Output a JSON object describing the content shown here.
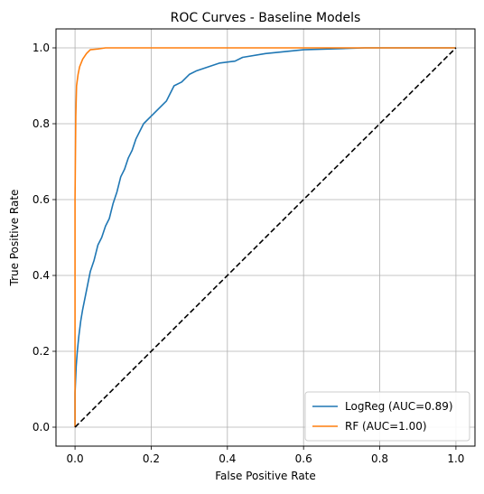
{
  "chart_data": {
    "type": "line",
    "title": "ROC Curves - Baseline Models",
    "xlabel": "False Positive Rate",
    "ylabel": "True Positive Rate",
    "xlim": [
      -0.05,
      1.05
    ],
    "ylim": [
      -0.05,
      1.05
    ],
    "xticks": [
      "0.0",
      "0.2",
      "0.4",
      "0.6",
      "0.8",
      "1.0"
    ],
    "yticks": [
      "0.0",
      "0.2",
      "0.4",
      "0.6",
      "0.8",
      "1.0"
    ],
    "grid": true,
    "legend_position": "lower-right",
    "series": [
      {
        "name": "LogReg (AUC=0.89)",
        "color": "#1f77b4",
        "style": "solid",
        "points": [
          [
            0.0,
            0.0
          ],
          [
            0.0,
            0.09
          ],
          [
            0.003,
            0.16
          ],
          [
            0.006,
            0.2
          ],
          [
            0.01,
            0.24
          ],
          [
            0.015,
            0.28
          ],
          [
            0.02,
            0.31
          ],
          [
            0.03,
            0.36
          ],
          [
            0.04,
            0.41
          ],
          [
            0.05,
            0.44
          ],
          [
            0.06,
            0.48
          ],
          [
            0.07,
            0.5
          ],
          [
            0.08,
            0.53
          ],
          [
            0.09,
            0.55
          ],
          [
            0.1,
            0.59
          ],
          [
            0.11,
            0.62
          ],
          [
            0.12,
            0.66
          ],
          [
            0.13,
            0.68
          ],
          [
            0.14,
            0.71
          ],
          [
            0.15,
            0.73
          ],
          [
            0.16,
            0.76
          ],
          [
            0.17,
            0.78
          ],
          [
            0.18,
            0.8
          ],
          [
            0.2,
            0.82
          ],
          [
            0.22,
            0.84
          ],
          [
            0.24,
            0.86
          ],
          [
            0.25,
            0.88
          ],
          [
            0.26,
            0.9
          ],
          [
            0.28,
            0.91
          ],
          [
            0.3,
            0.93
          ],
          [
            0.32,
            0.94
          ],
          [
            0.35,
            0.95
          ],
          [
            0.38,
            0.96
          ],
          [
            0.42,
            0.965
          ],
          [
            0.44,
            0.975
          ],
          [
            0.5,
            0.985
          ],
          [
            0.55,
            0.99
          ],
          [
            0.6,
            0.995
          ],
          [
            0.7,
            0.998
          ],
          [
            0.76,
            1.0
          ],
          [
            1.0,
            1.0
          ]
        ]
      },
      {
        "name": "RF (AUC=1.00)",
        "color": "#ff7f0e",
        "style": "solid",
        "points": [
          [
            0.0,
            0.0
          ],
          [
            0.0,
            0.6
          ],
          [
            0.002,
            0.82
          ],
          [
            0.004,
            0.9
          ],
          [
            0.008,
            0.93
          ],
          [
            0.012,
            0.95
          ],
          [
            0.02,
            0.97
          ],
          [
            0.03,
            0.985
          ],
          [
            0.04,
            0.995
          ],
          [
            0.06,
            0.997
          ],
          [
            0.08,
            1.0
          ],
          [
            1.0,
            1.0
          ]
        ]
      },
      {
        "name": "",
        "color": "#000000",
        "style": "dashed",
        "points": [
          [
            0.0,
            0.0
          ],
          [
            1.0,
            1.0
          ]
        ]
      }
    ]
  }
}
